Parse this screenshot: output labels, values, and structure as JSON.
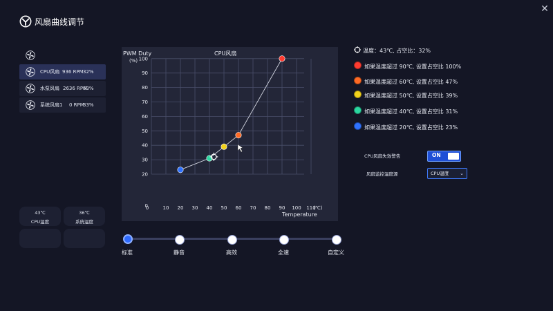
{
  "app": {
    "title": "风扇曲线调节"
  },
  "fans": [
    {
      "name": "CPU风扇",
      "rpm": "936 RPM",
      "pct": "32%",
      "active": true
    },
    {
      "name": "水泵风扇",
      "rpm": "2636 RPM",
      "pct": "63%",
      "active": false
    },
    {
      "name": "系统风扇1",
      "rpm": "0 RPM",
      "pct": "33%",
      "active": false
    }
  ],
  "temps": [
    {
      "value": "43℃",
      "label": "CPU温度"
    },
    {
      "value": "36℃",
      "label": "系统温度"
    }
  ],
  "chart": {
    "title": "CPU风扇",
    "ylabel_line1": "PWM Duty",
    "ylabel_line2": "(%)",
    "xlabel": "Temperature",
    "x_unit": "(℃)"
  },
  "chart_data": {
    "type": "line",
    "title": "CPU风扇",
    "xlabel": "Temperature",
    "ylabel": "PWM Duty (%)",
    "xlim": [
      0,
      110
    ],
    "ylim": [
      0,
      100
    ],
    "x_ticks": [
      0,
      10,
      20,
      30,
      40,
      50,
      60,
      70,
      80,
      90,
      100,
      110
    ],
    "y_ticks": [
      0,
      20,
      30,
      40,
      50,
      60,
      70,
      80,
      90,
      100
    ],
    "grid": true,
    "series": [
      {
        "x": [
          20,
          40,
          50,
          60,
          90
        ],
        "y": [
          23,
          31,
          39,
          47,
          100
        ],
        "colors": [
          "#2f72ff",
          "#2bd6a0",
          "#f2d21b",
          "#ff6a24",
          "#ff3b30"
        ]
      }
    ],
    "current_point": {
      "x": 43,
      "y": 32
    }
  },
  "legend": {
    "current": "温度：43℃, 占空比：32%",
    "items": [
      {
        "text": "如果温度超过 90℃, 设置占空比 100%",
        "color": "#ff3b30"
      },
      {
        "text": "如果温度超过 60℃, 设置占空比 47%",
        "color": "#ff6a24"
      },
      {
        "text": "如果温度超过 50℃, 设置占空比 39%",
        "color": "#f2d21b"
      },
      {
        "text": "如果温度超过 40℃, 设置占空比 31%",
        "color": "#2bd6a0"
      },
      {
        "text": "如果温度超过 20℃, 设置占空比 23%",
        "color": "#2f72ff"
      }
    ]
  },
  "settings": {
    "fail_alarm_label": "CPU风扇失效警告",
    "fail_alarm_state": "ON",
    "temp_source_label": "风扇监控温度源",
    "temp_source_value": "CPU温度"
  },
  "presets": [
    {
      "label": "标准",
      "active": true
    },
    {
      "label": "静音",
      "active": false
    },
    {
      "label": "高效",
      "active": false
    },
    {
      "label": "全速",
      "active": false
    },
    {
      "label": "自定义",
      "active": false
    }
  ],
  "colors": {
    "accent": "#2f6bff",
    "background": "#141625",
    "panel": "#232638"
  }
}
